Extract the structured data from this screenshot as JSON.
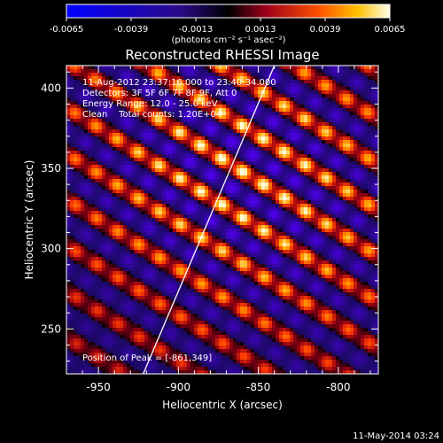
{
  "colorbar": {
    "ticks": [
      "-0.0065",
      "-0.0039",
      "-0.0013",
      "0.0013",
      "0.0039",
      "0.0065"
    ],
    "tick_values": [
      -0.0065,
      -0.0039,
      -0.0013,
      0.0013,
      0.0039,
      0.0065
    ],
    "units": "(photons cm⁻² s⁻¹ asec⁻²)"
  },
  "chart_data": {
    "type": "heatmap",
    "title": "Reconstructed RHESSI Image",
    "xlabel": "Heliocentric X (arcsec)",
    "ylabel": "Heliocentric Y (arcsec)",
    "xlim": [
      -970,
      -775
    ],
    "ylim": [
      222,
      414
    ],
    "x_ticks": [
      "-950",
      "-900",
      "-850",
      "-800"
    ],
    "x_tick_values": [
      -950,
      -900,
      -850,
      -800
    ],
    "y_ticks": [
      "250",
      "300",
      "350",
      "400"
    ],
    "y_tick_values": [
      250,
      300,
      350,
      400
    ],
    "value_range": [
      -0.0065,
      0.0065
    ],
    "peak": [
      -861,
      349
    ],
    "limb_line": {
      "x": [
        -922,
        -840
      ],
      "y": [
        222,
        414
      ]
    },
    "annotations": [
      "11-Aug-2012 23:37:16.000 to 23:40:34.000",
      "Detectors: 3F 5F 6F 7F 8F 9F, Att 0",
      "Energy Range: 12.0 - 25.0 keV",
      "Clean    Total counts: 1.20E+04"
    ],
    "peak_label": "Position of Peak = [-861,349]"
  },
  "footer": {
    "timestamp": "11-May-2014 03:24"
  }
}
